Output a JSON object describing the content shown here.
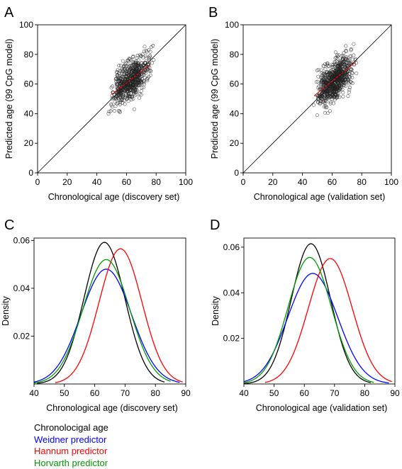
{
  "chart_data": [
    {
      "panel": "A",
      "type": "scatter",
      "xlabel": "Chronological age (discovery set)",
      "ylabel": "Predicted age (99 CpG model)",
      "xlim": [
        0,
        100
      ],
      "ylim": [
        0,
        100
      ],
      "xticks": [
        0,
        20,
        40,
        60,
        80,
        100
      ],
      "yticks": [
        0,
        20,
        40,
        60,
        80,
        100
      ],
      "identity_line": true,
      "point_cloud": {
        "x_range": [
          47,
          79
        ],
        "y_range": [
          40,
          97
        ],
        "n_points": 650,
        "trend_intercept": 14.5,
        "trend_slope": 0.77,
        "residual_sd": 6.2
      },
      "fit_line": {
        "x": [
          50,
          76
        ],
        "y": [
          53,
          73
        ],
        "color": "#ff0000"
      }
    },
    {
      "panel": "B",
      "type": "scatter",
      "xlabel": "Chronological age (validation set)",
      "ylabel": "Predicted age (99 CpG model)",
      "xlim": [
        0,
        100
      ],
      "ylim": [
        0,
        100
      ],
      "xticks": [
        0,
        20,
        40,
        60,
        80,
        100
      ],
      "yticks": [
        0,
        20,
        40,
        60,
        80,
        100
      ],
      "identity_line": true,
      "point_cloud": {
        "x_range": [
          47,
          77
        ],
        "y_range": [
          35,
          87
        ],
        "n_points": 750,
        "trend_intercept": 7.0,
        "trend_slope": 0.9,
        "residual_sd": 6.5
      },
      "fit_line": {
        "x": [
          48,
          76
        ],
        "y": [
          52,
          75
        ],
        "color": "#ff0000"
      }
    },
    {
      "panel": "C",
      "type": "line",
      "xlabel": "Chronological age (discovery set)",
      "ylabel": "Density",
      "xlim": [
        40,
        90
      ],
      "ylim": [
        0,
        0.061
      ],
      "xticks": [
        40,
        50,
        60,
        70,
        80,
        90
      ],
      "yticks": [
        0.02,
        0.04,
        0.06
      ],
      "series": [
        {
          "name": "Chronolocigal age",
          "color": "#000000",
          "mean": 63.2,
          "peak": 0.0592,
          "x_range": [
            41,
            83
          ]
        },
        {
          "name": "Weidner predictor",
          "color": "#0000ff",
          "mean": 63.8,
          "peak": 0.048,
          "x_range": [
            40,
            88
          ]
        },
        {
          "name": "Hannum predictor",
          "color": "#ff0000",
          "mean": 68.5,
          "peak": 0.0565,
          "x_range": [
            47,
            89
          ]
        },
        {
          "name": "Horvarth predictor",
          "color": "#009900",
          "mean": 63.8,
          "peak": 0.052,
          "x_range": [
            40,
            85
          ]
        }
      ]
    },
    {
      "panel": "D",
      "type": "line",
      "xlabel": "Chronological age (validation set)",
      "ylabel": "Density",
      "xlim": [
        40,
        90
      ],
      "ylim": [
        0,
        0.064
      ],
      "xticks": [
        40,
        50,
        60,
        70,
        80,
        90
      ],
      "yticks": [
        0.02,
        0.04,
        0.06
      ],
      "series": [
        {
          "name": "Chronolocigal age",
          "color": "#000000",
          "mean": 62.2,
          "peak": 0.0615,
          "x_range": [
            40,
            82
          ]
        },
        {
          "name": "Weidner predictor",
          "color": "#0000ff",
          "mean": 62.8,
          "peak": 0.0485,
          "x_range": [
            40,
            88
          ]
        },
        {
          "name": "Hannum predictor",
          "color": "#ff0000",
          "mean": 68.6,
          "peak": 0.055,
          "x_range": [
            47,
            89
          ]
        },
        {
          "name": "Horvarth predictor",
          "color": "#009900",
          "mean": 61.8,
          "peak": 0.0555,
          "x_range": [
            40,
            83
          ]
        }
      ]
    }
  ]
}
